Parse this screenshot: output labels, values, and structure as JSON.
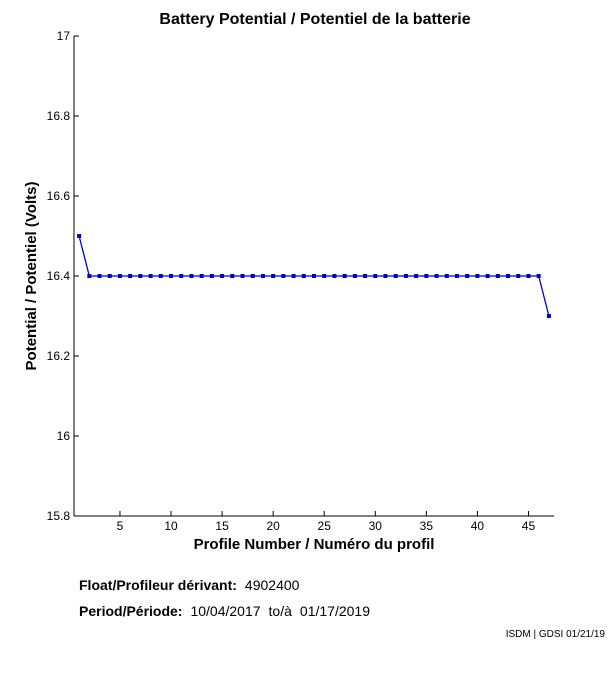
{
  "chart_data": {
    "type": "line",
    "title": "Battery Potential / Potentiel de la batterie",
    "xlabel": "Profile Number / Numéro du profil",
    "ylabel": "Potential / Potentiel (Volts)",
    "xlim": [
      0.5,
      47.5
    ],
    "ylim": [
      15.8,
      17
    ],
    "xticks": [
      5,
      10,
      15,
      20,
      25,
      30,
      35,
      40,
      45
    ],
    "yticks": [
      15.8,
      16,
      16.2,
      16.4,
      16.6,
      16.8,
      17
    ],
    "ytick_labels": [
      "15.8",
      "16",
      "16.2",
      "16.4",
      "16.6",
      "16.8",
      "17"
    ],
    "grid": false,
    "series_color": "#0000cc",
    "series": [
      {
        "x": [
          1,
          2,
          3,
          4,
          5,
          6,
          7,
          8,
          9,
          10,
          11,
          12,
          13,
          14,
          15,
          16,
          17,
          18,
          19,
          20,
          21,
          22,
          23,
          24,
          25,
          26,
          27,
          28,
          29,
          30,
          31,
          32,
          33,
          34,
          35,
          36,
          37,
          38,
          39,
          40,
          41,
          42,
          43,
          44,
          45,
          46,
          47
        ],
        "values": [
          16.5,
          16.4,
          16.4,
          16.4,
          16.4,
          16.4,
          16.4,
          16.4,
          16.4,
          16.4,
          16.4,
          16.4,
          16.4,
          16.4,
          16.4,
          16.4,
          16.4,
          16.4,
          16.4,
          16.4,
          16.4,
          16.4,
          16.4,
          16.4,
          16.4,
          16.4,
          16.4,
          16.4,
          16.4,
          16.4,
          16.4,
          16.4,
          16.4,
          16.4,
          16.4,
          16.4,
          16.4,
          16.4,
          16.4,
          16.4,
          16.4,
          16.4,
          16.4,
          16.4,
          16.4,
          16.4,
          16.3
        ]
      }
    ]
  },
  "info": {
    "float_label": "Float/Profileur dérivant:",
    "float_value": "4902400",
    "period_label": "Period/Période:",
    "period_start": "10/04/2017",
    "period_sep": "to/à",
    "period_end": "01/17/2019"
  },
  "credit": "ISDM | GDSI 01/21/19"
}
